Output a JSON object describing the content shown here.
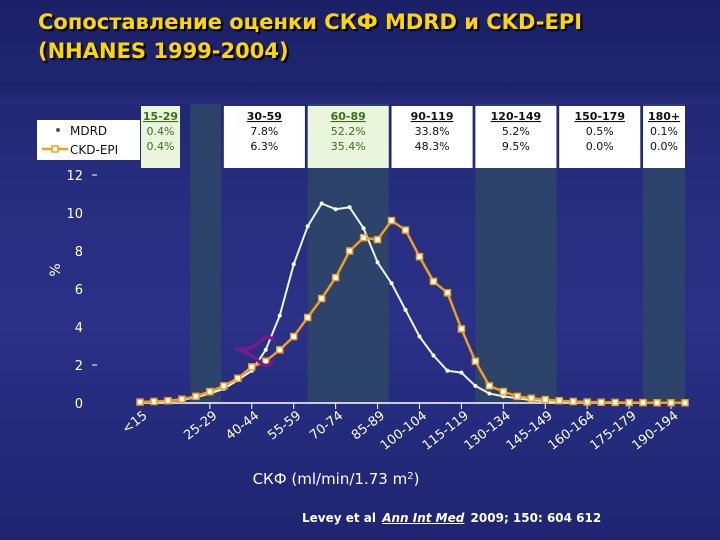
{
  "title": {
    "line1": "Сопоставление оценки СКФ MDRD и CKD-EPI",
    "line2": "(NHANES 1999-2004)"
  },
  "citation": {
    "authors": "Levey et al",
    "journal": "Ann Int Med",
    "details": "2009; 150: 604 612"
  },
  "colors": {
    "mdrd": "#e8f5e0",
    "ckdepi": "#f0a020",
    "band": "#2e4766",
    "marker": "#7d1a8a"
  },
  "chart_data": {
    "type": "line",
    "xlabel": "СКФ (ml/min/1.73 m",
    "xlabel_sup": "2",
    "xlabel_end": ")",
    "ylabel": "%",
    "ylim": [
      0,
      12
    ],
    "yticks": [
      "0",
      "2",
      "4",
      "6",
      "8",
      "10",
      "12"
    ],
    "categories": [
      "<15",
      "25-29",
      "40-44",
      "55-59",
      "70-74",
      "85-89",
      "100-104",
      "115-119",
      "130-134",
      "145-149",
      "160-164",
      "175-179",
      "190-194"
    ],
    "x": [
      0,
      5,
      10,
      15,
      20,
      25,
      30,
      35,
      40,
      45,
      50,
      55,
      60,
      65,
      70,
      75,
      80,
      85,
      90,
      95,
      100,
      105,
      110,
      115,
      120,
      125,
      130,
      135,
      140,
      145,
      150,
      155,
      160,
      165,
      170,
      175,
      180,
      185,
      190,
      195
    ],
    "series": [
      {
        "name": "MDRD",
        "values": [
          0.0,
          0.05,
          0.1,
          0.15,
          0.3,
          0.5,
          0.75,
          1.2,
          1.7,
          2.8,
          4.6,
          7.3,
          9.3,
          10.5,
          10.2,
          10.3,
          9.2,
          7.4,
          6.3,
          4.9,
          3.5,
          2.5,
          1.7,
          1.6,
          0.9,
          0.5,
          0.35,
          0.25,
          0.15,
          0.1,
          0.05,
          0.03,
          0.02,
          0.01,
          0.0,
          0.0,
          0.0,
          0.0,
          0.0,
          0.0
        ]
      },
      {
        "name": "CKD-EPI",
        "values": [
          0.05,
          0.08,
          0.12,
          0.2,
          0.35,
          0.6,
          0.9,
          1.3,
          1.9,
          2.2,
          2.8,
          3.5,
          4.5,
          5.5,
          6.6,
          8.0,
          8.7,
          8.6,
          9.6,
          9.1,
          7.7,
          6.4,
          5.8,
          3.9,
          2.2,
          0.9,
          0.6,
          0.35,
          0.25,
          0.18,
          0.12,
          0.08,
          0.05,
          0.04,
          0.03,
          0.02,
          0.02,
          0.01,
          0.01,
          0.01
        ]
      }
    ],
    "bands": [
      {
        "label": "15-29",
        "mdrd": "0.4%",
        "ckdepi": "0.4%",
        "from": 18,
        "to": 29,
        "header_style": "green"
      },
      {
        "label": "30-59",
        "mdrd": "7.8%",
        "ckdepi": "6.3%",
        "from": 30,
        "to": 59,
        "header_style": "white"
      },
      {
        "label": "60-89",
        "mdrd": "52.2%",
        "ckdepi": "35.4%",
        "from": 60,
        "to": 89,
        "header_style": "green"
      },
      {
        "label": "90-119",
        "mdrd": "33.8%",
        "ckdepi": "48.3%",
        "from": 90,
        "to": 119,
        "header_style": "white"
      },
      {
        "label": "120-149",
        "mdrd": "5.2%",
        "ckdepi": "9.5%",
        "from": 120,
        "to": 149,
        "header_style": "white"
      },
      {
        "label": "150-179",
        "mdrd": "0.5%",
        "ckdepi": "0.0%",
        "from": 150,
        "to": 179,
        "header_style": "white"
      },
      {
        "label": "180+",
        "mdrd": "0.1%",
        "ckdepi": "0.0%",
        "from": 180,
        "to": 195,
        "header_style": "white"
      }
    ],
    "shaded_bands": [
      0,
      2,
      4,
      6
    ],
    "legend_position": "top-left"
  }
}
